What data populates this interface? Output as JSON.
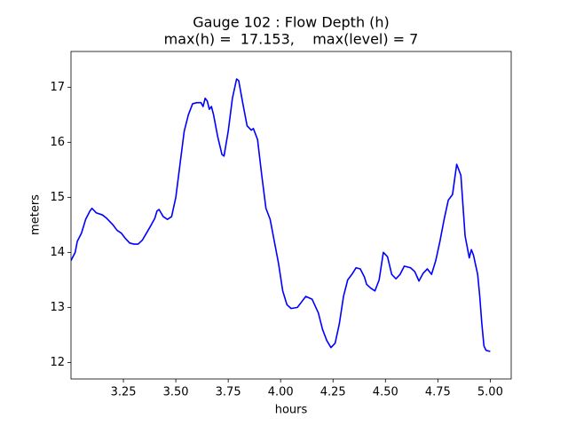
{
  "chart_data": {
    "type": "line",
    "title": "Gauge 102 : Flow Depth (h)",
    "subtitle": "max(h) =  17.153,    max(level) = 7",
    "x_label": "hours",
    "y_label": "meters",
    "x": [
      3.0,
      3.02,
      3.03,
      3.05,
      3.07,
      3.09,
      3.1,
      3.12,
      3.15,
      3.17,
      3.2,
      3.22,
      3.24,
      3.26,
      3.28,
      3.3,
      3.32,
      3.34,
      3.36,
      3.38,
      3.4,
      3.41,
      3.42,
      3.44,
      3.46,
      3.48,
      3.5,
      3.52,
      3.54,
      3.56,
      3.58,
      3.6,
      3.62,
      3.63,
      3.64,
      3.65,
      3.66,
      3.67,
      3.68,
      3.7,
      3.72,
      3.73,
      3.75,
      3.77,
      3.79,
      3.8,
      3.82,
      3.84,
      3.86,
      3.87,
      3.89,
      3.91,
      3.93,
      3.95,
      3.97,
      3.99,
      4.01,
      4.03,
      4.05,
      4.08,
      4.1,
      4.12,
      4.15,
      4.18,
      4.2,
      4.22,
      4.24,
      4.26,
      4.28,
      4.3,
      4.32,
      4.34,
      4.36,
      4.38,
      4.4,
      4.41,
      4.43,
      4.45,
      4.47,
      4.49,
      4.51,
      4.53,
      4.55,
      4.57,
      4.59,
      4.62,
      4.64,
      4.66,
      4.68,
      4.7,
      4.72,
      4.74,
      4.76,
      4.78,
      4.8,
      4.82,
      4.84,
      4.86,
      4.88,
      4.9,
      4.91,
      4.92,
      4.94,
      4.95,
      4.96,
      4.97,
      4.98,
      5.0
    ],
    "series": [
      {
        "name": "h",
        "color": "#0000ff",
        "values": [
          13.85,
          14.0,
          14.2,
          14.35,
          14.6,
          14.75,
          14.8,
          14.72,
          14.68,
          14.62,
          14.5,
          14.4,
          14.35,
          14.25,
          14.17,
          14.15,
          14.15,
          14.22,
          14.35,
          14.48,
          14.62,
          14.75,
          14.78,
          14.65,
          14.6,
          14.65,
          15.0,
          15.6,
          16.2,
          16.5,
          16.7,
          16.72,
          16.72,
          16.65,
          16.8,
          16.75,
          16.6,
          16.65,
          16.5,
          16.1,
          15.78,
          15.75,
          16.2,
          16.8,
          17.15,
          17.12,
          16.7,
          16.3,
          16.22,
          16.25,
          16.05,
          15.4,
          14.8,
          14.6,
          14.2,
          13.8,
          13.3,
          13.05,
          12.98,
          13.0,
          13.1,
          13.2,
          13.15,
          12.9,
          12.6,
          12.4,
          12.27,
          12.35,
          12.7,
          13.2,
          13.5,
          13.6,
          13.72,
          13.7,
          13.55,
          13.42,
          13.35,
          13.3,
          13.5,
          14.0,
          13.92,
          13.6,
          13.52,
          13.6,
          13.75,
          13.72,
          13.65,
          13.48,
          13.62,
          13.7,
          13.6,
          13.85,
          14.2,
          14.6,
          14.95,
          15.05,
          15.6,
          15.4,
          14.3,
          13.9,
          14.05,
          13.95,
          13.6,
          13.2,
          12.7,
          12.3,
          12.22,
          12.2
        ]
      }
    ],
    "xlim": [
      3.0,
      5.1
    ],
    "xticks": [
      {
        "value": 3.25,
        "label": "3.25"
      },
      {
        "value": 3.5,
        "label": "3.50"
      },
      {
        "value": 3.75,
        "label": "3.75"
      },
      {
        "value": 4.0,
        "label": "4.00"
      },
      {
        "value": 4.25,
        "label": "4.25"
      },
      {
        "value": 4.5,
        "label": "4.50"
      },
      {
        "value": 4.75,
        "label": "4.75"
      },
      {
        "value": 5.0,
        "label": "5.00"
      }
    ],
    "ylim": [
      11.7,
      17.65
    ],
    "yticks": [
      12,
      13,
      14,
      15,
      16,
      17
    ],
    "grid": false
  }
}
